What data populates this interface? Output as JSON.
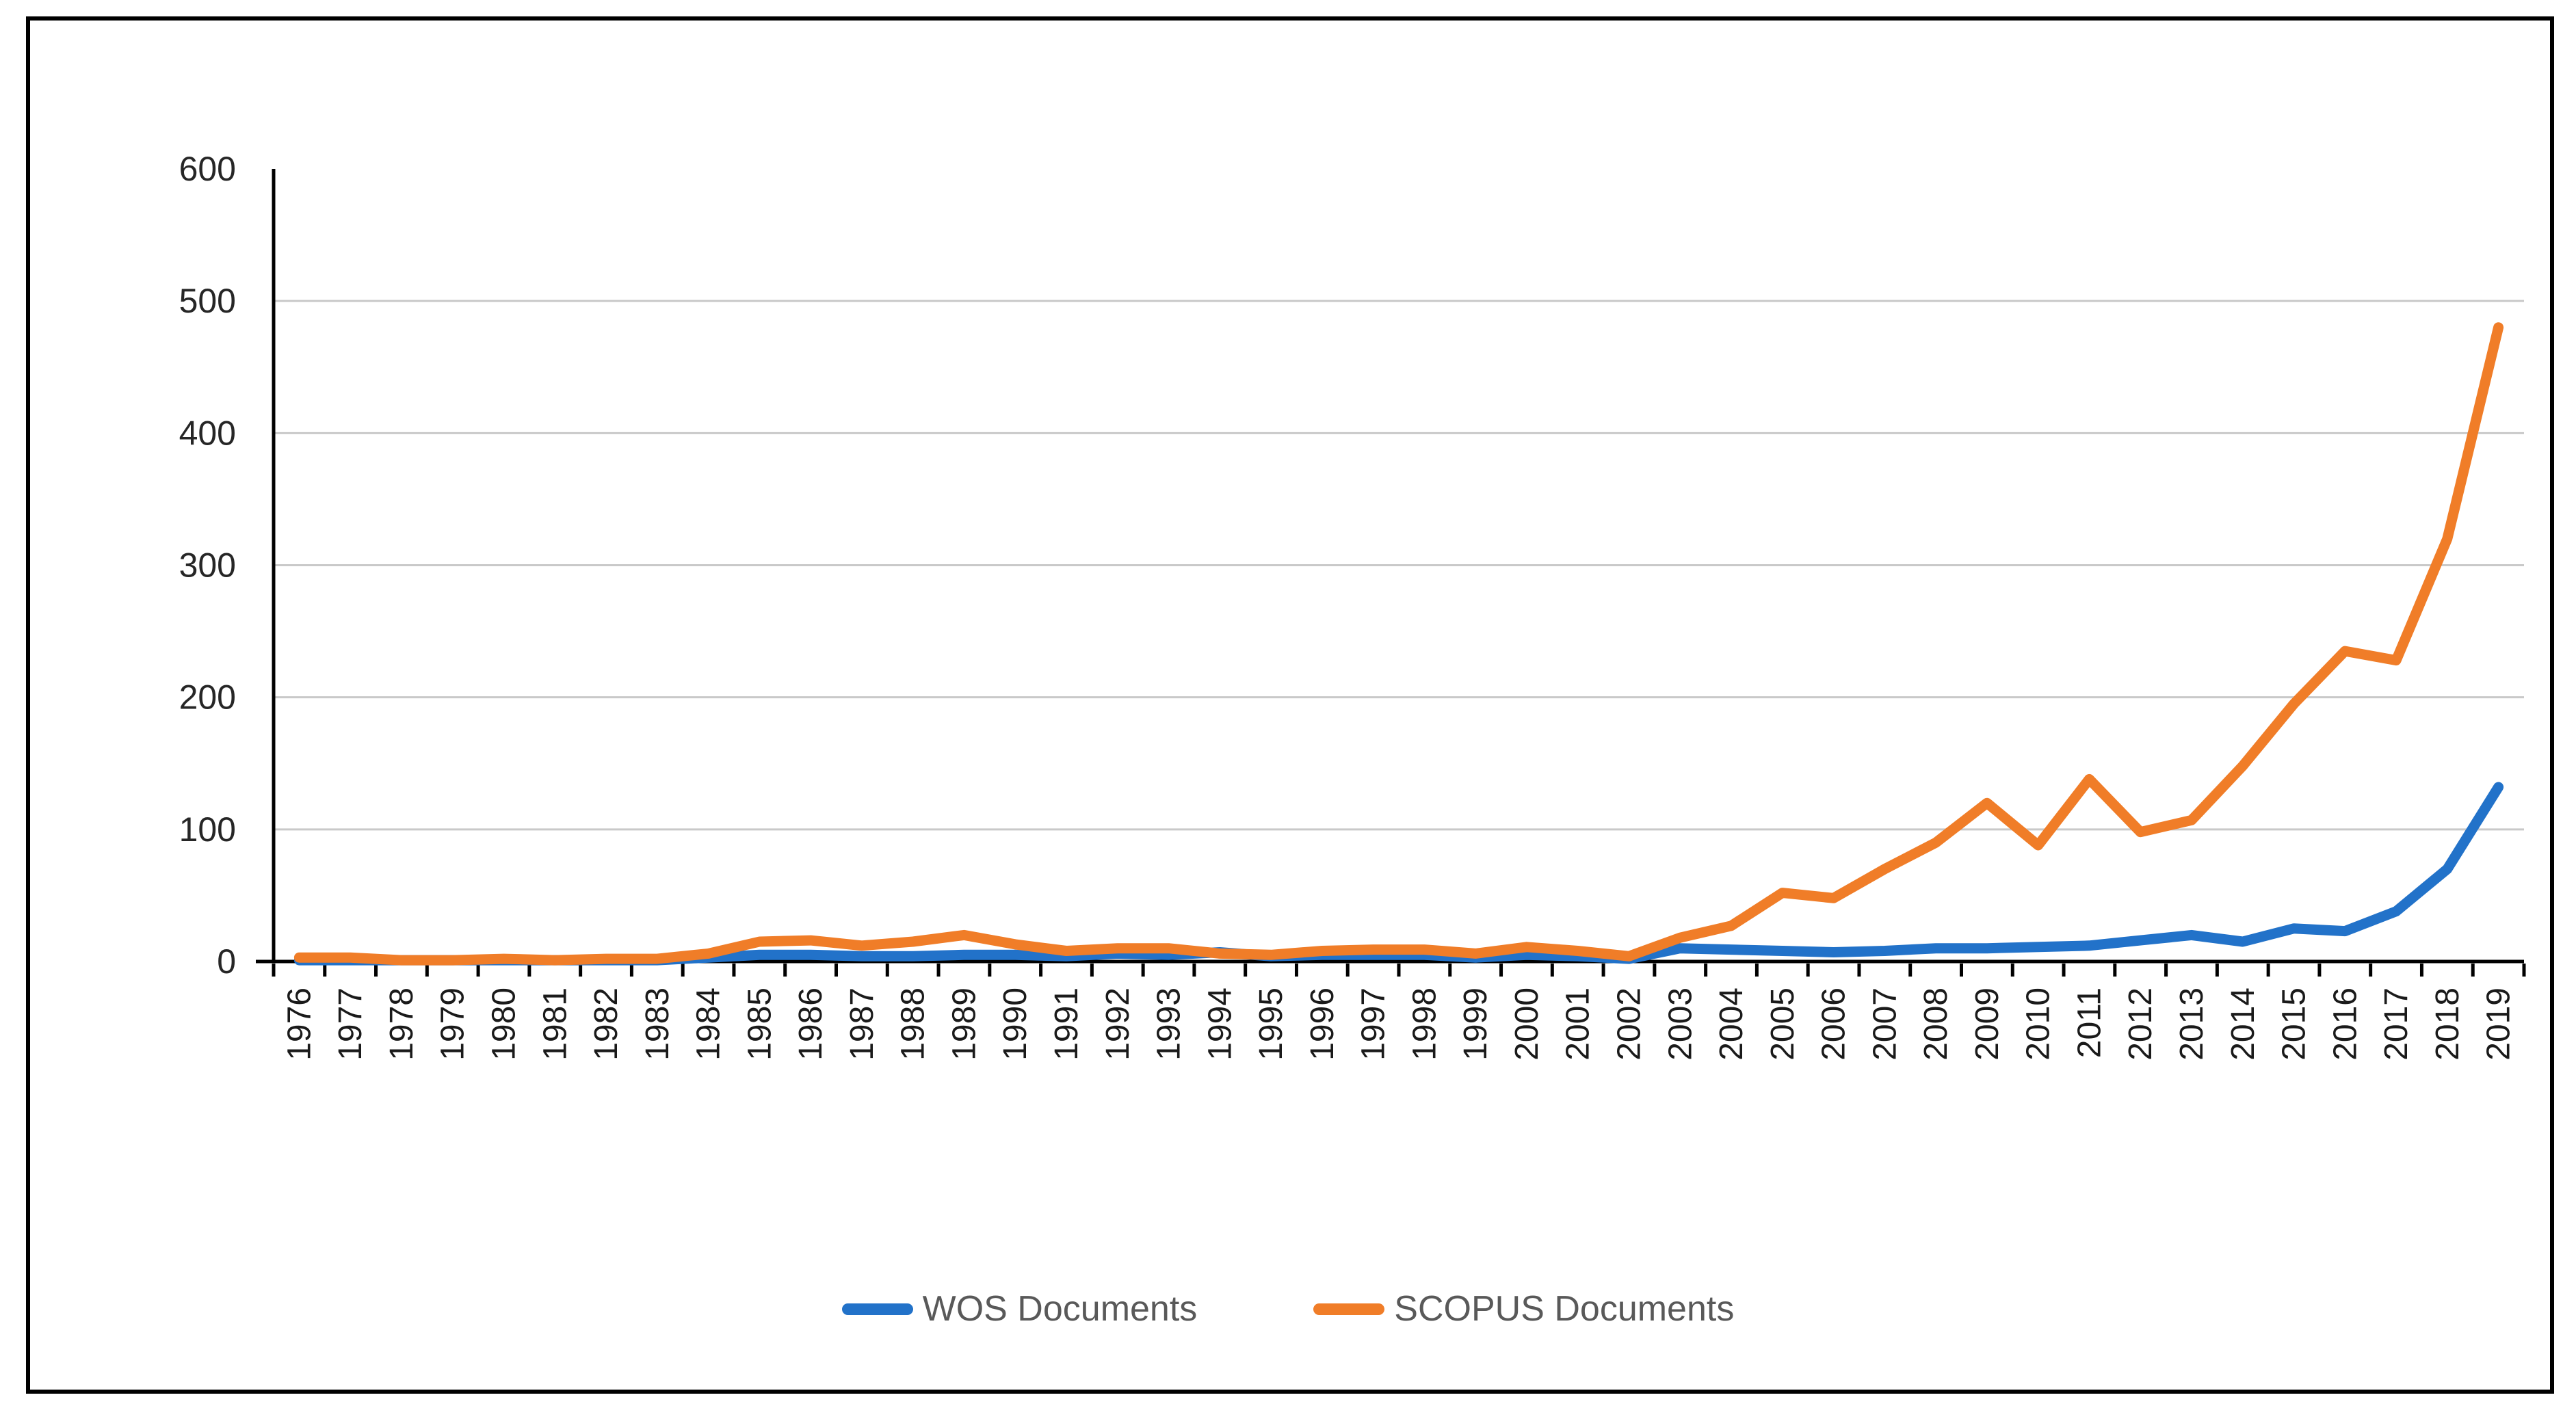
{
  "chart_data": {
    "type": "line",
    "title": "",
    "x": [
      "1976",
      "1977",
      "1978",
      "1979",
      "1980",
      "1981",
      "1982",
      "1983",
      "1984",
      "1985",
      "1986",
      "1987",
      "1988",
      "1989",
      "1990",
      "1991",
      "1992",
      "1993",
      "1994",
      "1995",
      "1996",
      "1997",
      "1998",
      "1999",
      "2000",
      "2001",
      "2002",
      "2003",
      "2004",
      "2005",
      "2006",
      "2007",
      "2008",
      "2009",
      "2010",
      "2011",
      "2012",
      "2013",
      "2014",
      "2015",
      "2016",
      "2017",
      "2018",
      "2019"
    ],
    "series": [
      {
        "name": "WOS Documents",
        "color": "#2272C9",
        "values": [
          1,
          1,
          1,
          1,
          1,
          1,
          1,
          1,
          3,
          5,
          5,
          4,
          4,
          5,
          5,
          4,
          6,
          5,
          7,
          4,
          5,
          5,
          5,
          3,
          5,
          4,
          2,
          10,
          9,
          8,
          7,
          8,
          10,
          10,
          11,
          12,
          16,
          20,
          15,
          25,
          23,
          38,
          70,
          132
        ]
      },
      {
        "name": "SCOPUS Documents",
        "color": "#F07D28",
        "values": [
          3,
          3,
          1,
          1,
          2,
          1,
          2,
          2,
          6,
          15,
          16,
          12,
          15,
          20,
          13,
          8,
          10,
          10,
          6,
          5,
          8,
          9,
          9,
          6,
          11,
          8,
          4,
          18,
          27,
          52,
          48,
          70,
          90,
          120,
          88,
          138,
          98,
          107,
          148,
          195,
          235,
          228,
          320,
          480
        ]
      }
    ],
    "ylim": [
      0,
      600
    ],
    "yticks": [
      0,
      100,
      200,
      300,
      400,
      500,
      600
    ],
    "grid": "horizontal, every 100, none at 600",
    "legend_position": "bottom",
    "colors": {
      "background": "#FFFFFF",
      "border": "#000000",
      "axis": "#000000",
      "gridline": "#C9C9C9",
      "ytick_label": "#262626",
      "xtick_label": "#1A1A1A",
      "legend_text": "#595959"
    }
  }
}
